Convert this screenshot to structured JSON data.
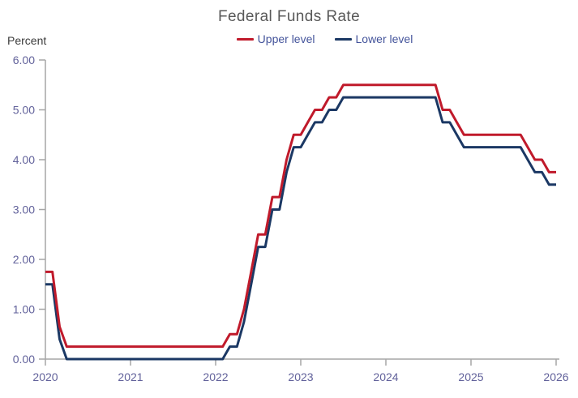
{
  "chart_data": {
    "type": "line",
    "title": "Federal Funds Rate",
    "ylabel": "Percent",
    "xlabel": "",
    "ylim": [
      0,
      6
    ],
    "xlim": [
      2020,
      2026
    ],
    "grid": false,
    "legend_position": "top-center",
    "y_ticks": [
      "0.00",
      "1.00",
      "2.00",
      "3.00",
      "4.00",
      "5.00",
      "6.00"
    ],
    "x_ticks": [
      "2020",
      "2021",
      "2022",
      "2023",
      "2024",
      "2025",
      "2026"
    ],
    "x": [
      "2020-01",
      "2020-02",
      "2020-03",
      "2020-04",
      "2020-05",
      "2020-06",
      "2020-07",
      "2020-08",
      "2020-09",
      "2020-10",
      "2020-11",
      "2020-12",
      "2021-01",
      "2021-02",
      "2021-03",
      "2021-04",
      "2021-05",
      "2021-06",
      "2021-07",
      "2021-08",
      "2021-09",
      "2021-10",
      "2021-11",
      "2021-12",
      "2022-01",
      "2022-02",
      "2022-03",
      "2022-04",
      "2022-05",
      "2022-06",
      "2022-07",
      "2022-08",
      "2022-09",
      "2022-10",
      "2022-11",
      "2022-12",
      "2023-01",
      "2023-02",
      "2023-03",
      "2023-04",
      "2023-05",
      "2023-06",
      "2023-07",
      "2023-08",
      "2023-09",
      "2023-10",
      "2023-11",
      "2023-12",
      "2024-01",
      "2024-02",
      "2024-03",
      "2024-04",
      "2024-05",
      "2024-06",
      "2024-07",
      "2024-08",
      "2024-09",
      "2024-10",
      "2024-11",
      "2024-12",
      "2025-01",
      "2025-02",
      "2025-03",
      "2025-04",
      "2025-05",
      "2025-06",
      "2025-07",
      "2025-08",
      "2025-09",
      "2025-10",
      "2025-11",
      "2025-12",
      "2026-01"
    ],
    "series": [
      {
        "name": "Upper level",
        "color": "#C01A2B",
        "values": [
          1.75,
          1.75,
          0.65,
          0.25,
          0.25,
          0.25,
          0.25,
          0.25,
          0.25,
          0.25,
          0.25,
          0.25,
          0.25,
          0.25,
          0.25,
          0.25,
          0.25,
          0.25,
          0.25,
          0.25,
          0.25,
          0.25,
          0.25,
          0.25,
          0.25,
          0.25,
          0.5,
          0.5,
          1.0,
          1.75,
          2.5,
          2.5,
          3.25,
          3.25,
          4.0,
          4.5,
          4.5,
          4.75,
          5.0,
          5.0,
          5.25,
          5.25,
          5.5,
          5.5,
          5.5,
          5.5,
          5.5,
          5.5,
          5.5,
          5.5,
          5.5,
          5.5,
          5.5,
          5.5,
          5.5,
          5.5,
          5.0,
          5.0,
          4.75,
          4.5,
          4.5,
          4.5,
          4.5,
          4.5,
          4.5,
          4.5,
          4.5,
          4.5,
          4.25,
          4.0,
          4.0,
          3.75,
          3.75
        ]
      },
      {
        "name": "Lower level",
        "color": "#1B3864",
        "values": [
          1.5,
          1.5,
          0.4,
          0.0,
          0.0,
          0.0,
          0.0,
          0.0,
          0.0,
          0.0,
          0.0,
          0.0,
          0.0,
          0.0,
          0.0,
          0.0,
          0.0,
          0.0,
          0.0,
          0.0,
          0.0,
          0.0,
          0.0,
          0.0,
          0.0,
          0.0,
          0.25,
          0.25,
          0.75,
          1.5,
          2.25,
          2.25,
          3.0,
          3.0,
          3.75,
          4.25,
          4.25,
          4.5,
          4.75,
          4.75,
          5.0,
          5.0,
          5.25,
          5.25,
          5.25,
          5.25,
          5.25,
          5.25,
          5.25,
          5.25,
          5.25,
          5.25,
          5.25,
          5.25,
          5.25,
          5.25,
          4.75,
          4.75,
          4.5,
          4.25,
          4.25,
          4.25,
          4.25,
          4.25,
          4.25,
          4.25,
          4.25,
          4.25,
          4.0,
          3.75,
          3.75,
          3.5,
          3.5
        ]
      }
    ],
    "colors": {
      "title": "#595959",
      "ylabel_text": "#3B3B3B",
      "axis": "#A6A6A6",
      "tick_label": "#62629B",
      "legend_text": "#44549B"
    }
  }
}
